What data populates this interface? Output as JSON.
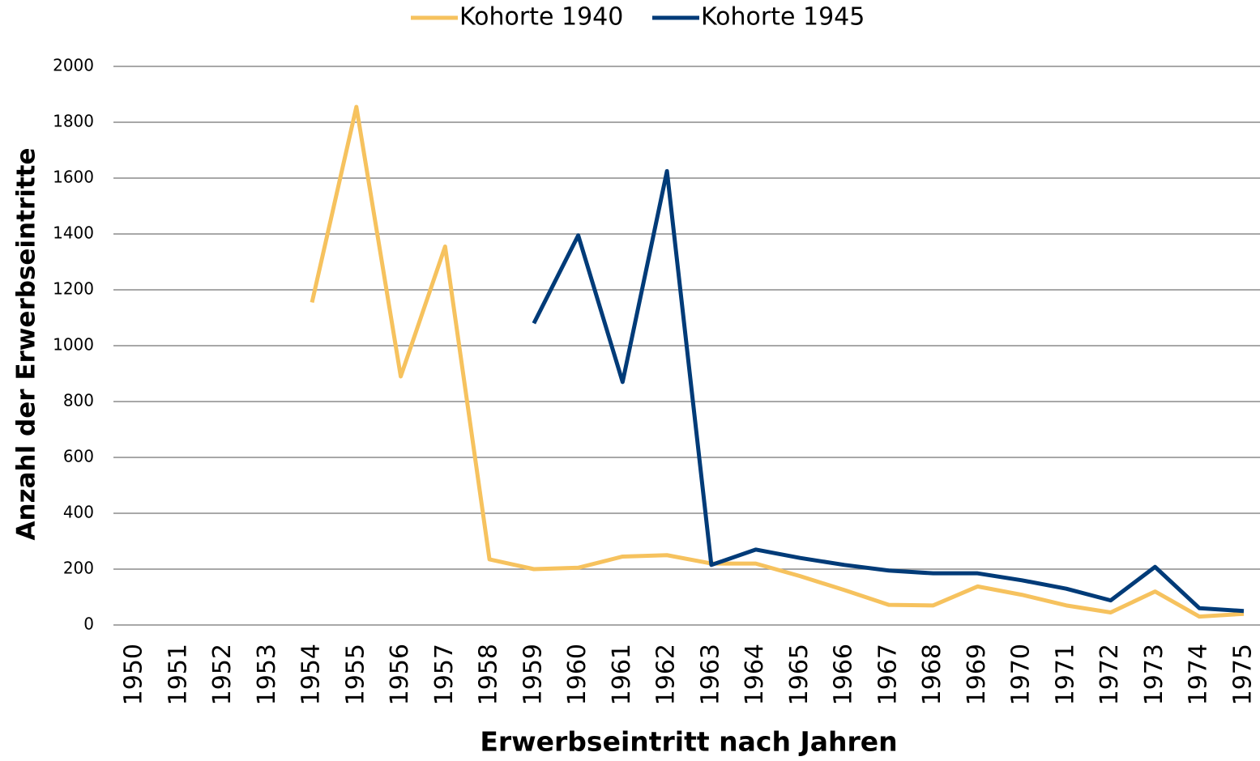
{
  "chart_data": {
    "type": "line",
    "x_label": "Erwerbseintritt nach Jahren",
    "y_label": "Anzahl der Erwerbseintritte",
    "categories": [
      "1950",
      "1951",
      "1952",
      "1953",
      "1954",
      "1955",
      "1956",
      "1957",
      "1958",
      "1959",
      "1960",
      "1961",
      "1962",
      "1963",
      "1964",
      "1965",
      "1966",
      "1967",
      "1968",
      "1969",
      "1970",
      "1971",
      "1972",
      "1973",
      "1974",
      "1975"
    ],
    "series": [
      {
        "name": "Kohorte 1940",
        "color": "#f6c25e",
        "values": [
          null,
          null,
          null,
          null,
          1155,
          1855,
          890,
          1355,
          235,
          200,
          205,
          245,
          250,
          220,
          220,
          175,
          125,
          72,
          70,
          138,
          108,
          70,
          45,
          120,
          30,
          40
        ]
      },
      {
        "name": "Kohorte 1945",
        "color": "#003b78",
        "values": [
          null,
          null,
          null,
          null,
          null,
          null,
          null,
          null,
          null,
          1080,
          1395,
          870,
          1625,
          215,
          270,
          240,
          215,
          195,
          185,
          185,
          160,
          130,
          88,
          208,
          60,
          50
        ]
      }
    ],
    "ylim": [
      0,
      2000
    ],
    "yticks": [
      0,
      200,
      400,
      600,
      800,
      1000,
      1200,
      1400,
      1600,
      1800,
      2000
    ],
    "grid": true,
    "legend": "top"
  }
}
